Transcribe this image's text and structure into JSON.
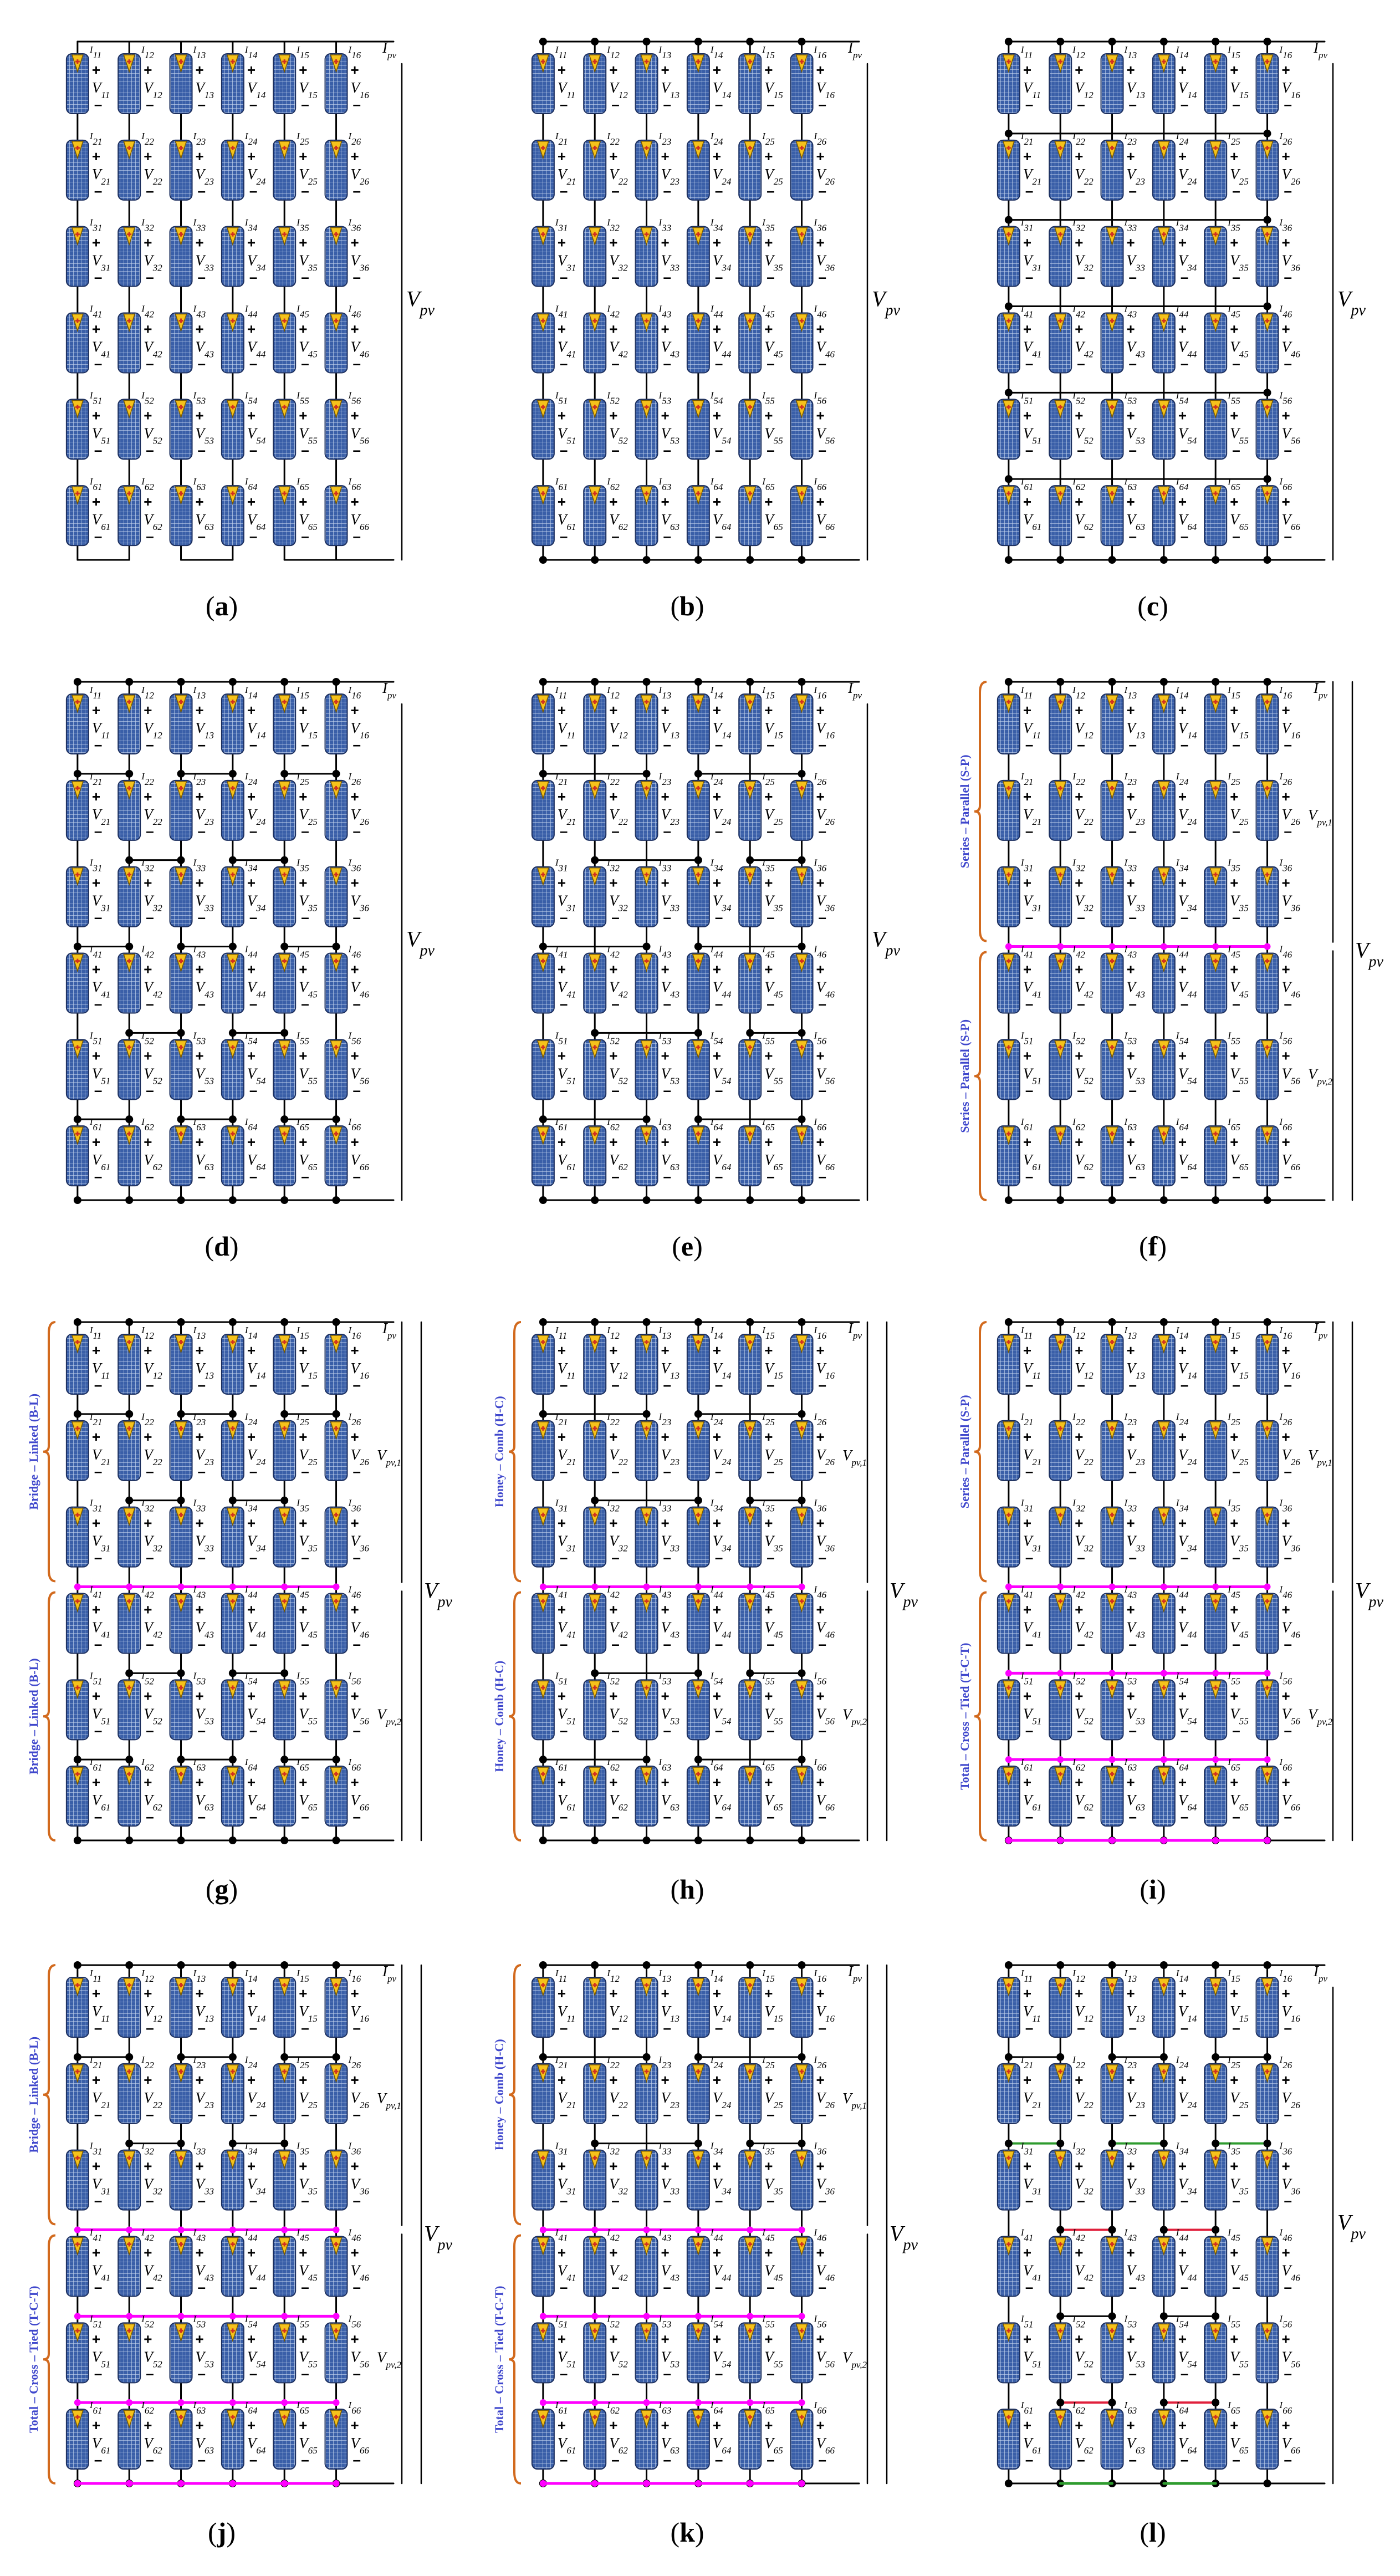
{
  "panels": [
    {
      "caption": "a",
      "config": "series",
      "groups": []
    },
    {
      "caption": "b",
      "config": "parallel",
      "groups": []
    },
    {
      "caption": "c",
      "config": "tct",
      "groups": []
    },
    {
      "caption": "d",
      "config": "bridge",
      "groups": []
    },
    {
      "caption": "e",
      "config": "honey",
      "groups": []
    },
    {
      "caption": "f",
      "config": "sp-sp",
      "groups": [
        "Series – Parallel (S-P)",
        "Series – Parallel (S-P)"
      ]
    },
    {
      "caption": "g",
      "config": "bl-bl",
      "groups": [
        "Bridge – Linked (B-L)",
        "Bridge – Linked (B-L)"
      ]
    },
    {
      "caption": "h",
      "config": "hc-hc",
      "groups": [
        "Honey – Comb (H-C)",
        "Honey – Comb (H-C)"
      ]
    },
    {
      "caption": "i",
      "config": "sp-tct",
      "groups": [
        "Series – Parallel (S-P)",
        "Total – Cross – Tied (T-C-T)"
      ]
    },
    {
      "caption": "j",
      "config": "bl-tct",
      "groups": [
        "Bridge – Linked (B-L)",
        "Total – Cross – Tied (T-C-T)"
      ]
    },
    {
      "caption": "k",
      "config": "hc-tct",
      "groups": [
        "Honey – Comb (H-C)",
        "Total – Cross – Tied (T-C-T)"
      ]
    },
    {
      "caption": "l",
      "config": "custom",
      "groups": []
    }
  ],
  "labels": {
    "current_letter": "I",
    "voltage_letter": "V",
    "array_current_sub": "pv",
    "array_voltage_sub": "pv",
    "sub_voltage_1": "pv,1",
    "sub_voltage_2": "pv,2",
    "plus": "+",
    "minus": "–"
  },
  "colors": {
    "wire": "#000000",
    "tie_magenta": "#ff00ff",
    "tie_green": "#2e9b2e",
    "tie_red": "#e0203c",
    "module_fill": "#3a5fa8",
    "module_grid": "#c8d8f0",
    "diode_fill": "#f5c21b",
    "diode_mark": "#d03020",
    "brace": "#d26a1e",
    "group_text": "#3f47cc"
  }
}
